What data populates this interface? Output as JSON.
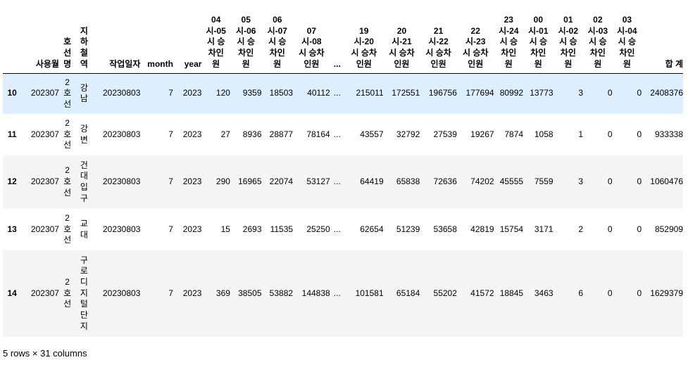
{
  "table": {
    "columns": [
      {
        "key": "idx",
        "label": ""
      },
      {
        "key": "c_ym",
        "label": "사용월"
      },
      {
        "key": "c_line",
        "label": "호\n선\n명"
      },
      {
        "key": "c_st",
        "label": "지\n하\n철\n역"
      },
      {
        "key": "c_date",
        "label": "작업일자"
      },
      {
        "key": "c_month",
        "label": "month"
      },
      {
        "key": "c_year",
        "label": "year"
      },
      {
        "key": "c_04",
        "label": "04\n시-05\n시 승\n차인\n원"
      },
      {
        "key": "c_05",
        "label": "05\n시-06\n시 승\n차인\n원"
      },
      {
        "key": "c_06",
        "label": "06\n시-07\n시 승\n차인\n원"
      },
      {
        "key": "c_07",
        "label": "07\n시-08\n시 승차\n인원"
      },
      {
        "key": "c_ell",
        "label": "..."
      },
      {
        "key": "c_19",
        "label": "19\n시-20\n시 승차\n인원"
      },
      {
        "key": "c_20",
        "label": "20\n시-21\n시 승차\n인원"
      },
      {
        "key": "c_21",
        "label": "21\n시-22\n시 승차\n인원"
      },
      {
        "key": "c_22",
        "label": "22\n시-23\n시 승차\n인원"
      },
      {
        "key": "c_23",
        "label": "23\n시-24\n시 승\n차인\n원"
      },
      {
        "key": "c_00",
        "label": "00\n시-01\n시 승\n차인\n원"
      },
      {
        "key": "c_01",
        "label": "01\n시-02\n시 승\n차인\n원"
      },
      {
        "key": "c_02",
        "label": "02\n시-03\n시 승\n차인\n원"
      },
      {
        "key": "c_03",
        "label": "03\n시-04\n시 승\n차인\n원"
      },
      {
        "key": "c_total",
        "label": "합 계"
      }
    ],
    "rows": [
      {
        "idx": "10",
        "c_ym": "202307",
        "c_line": "2\n호\n선",
        "c_st": "강\n남",
        "c_date": "20230803",
        "c_month": "7",
        "c_year": "2023",
        "c_04": "120",
        "c_05": "9359",
        "c_06": "18503",
        "c_07": "40112",
        "c_ell": "...",
        "c_19": "215011",
        "c_20": "172551",
        "c_21": "196756",
        "c_22": "177694",
        "c_23": "80992",
        "c_00": "13773",
        "c_01": "3",
        "c_02": "0",
        "c_03": "0",
        "c_total": "2408376"
      },
      {
        "idx": "11",
        "c_ym": "202307",
        "c_line": "2\n호\n선",
        "c_st": "강\n변",
        "c_date": "20230803",
        "c_month": "7",
        "c_year": "2023",
        "c_04": "27",
        "c_05": "8936",
        "c_06": "28877",
        "c_07": "78164",
        "c_ell": "...",
        "c_19": "43557",
        "c_20": "32792",
        "c_21": "27539",
        "c_22": "19267",
        "c_23": "7874",
        "c_00": "1058",
        "c_01": "1",
        "c_02": "0",
        "c_03": "0",
        "c_total": "933338"
      },
      {
        "idx": "12",
        "c_ym": "202307",
        "c_line": "2\n호\n선",
        "c_st": "건\n대\n입\n구",
        "c_date": "20230803",
        "c_month": "7",
        "c_year": "2023",
        "c_04": "290",
        "c_05": "16965",
        "c_06": "22074",
        "c_07": "53127",
        "c_ell": "...",
        "c_19": "64419",
        "c_20": "65838",
        "c_21": "72636",
        "c_22": "74202",
        "c_23": "45555",
        "c_00": "7559",
        "c_01": "3",
        "c_02": "0",
        "c_03": "0",
        "c_total": "1060476"
      },
      {
        "idx": "13",
        "c_ym": "202307",
        "c_line": "2\n호\n선",
        "c_st": "교\n대",
        "c_date": "20230803",
        "c_month": "7",
        "c_year": "2023",
        "c_04": "15",
        "c_05": "2693",
        "c_06": "11535",
        "c_07": "25250",
        "c_ell": "...",
        "c_19": "62654",
        "c_20": "51239",
        "c_21": "53658",
        "c_22": "42819",
        "c_23": "15754",
        "c_00": "3171",
        "c_01": "2",
        "c_02": "0",
        "c_03": "0",
        "c_total": "852909"
      },
      {
        "idx": "14",
        "c_ym": "202307",
        "c_line": "2\n호\n선",
        "c_st": "구\n로\n디\n지\n털\n단\n지",
        "c_date": "20230803",
        "c_month": "7",
        "c_year": "2023",
        "c_04": "369",
        "c_05": "38505",
        "c_06": "53882",
        "c_07": "144838",
        "c_ell": "...",
        "c_19": "101581",
        "c_20": "65184",
        "c_21": "55202",
        "c_22": "41572",
        "c_23": "18845",
        "c_00": "3463",
        "c_01": "6",
        "c_02": "0",
        "c_03": "0",
        "c_total": "1629379"
      }
    ]
  },
  "footer": {
    "text": "5 rows × 31 columns"
  }
}
